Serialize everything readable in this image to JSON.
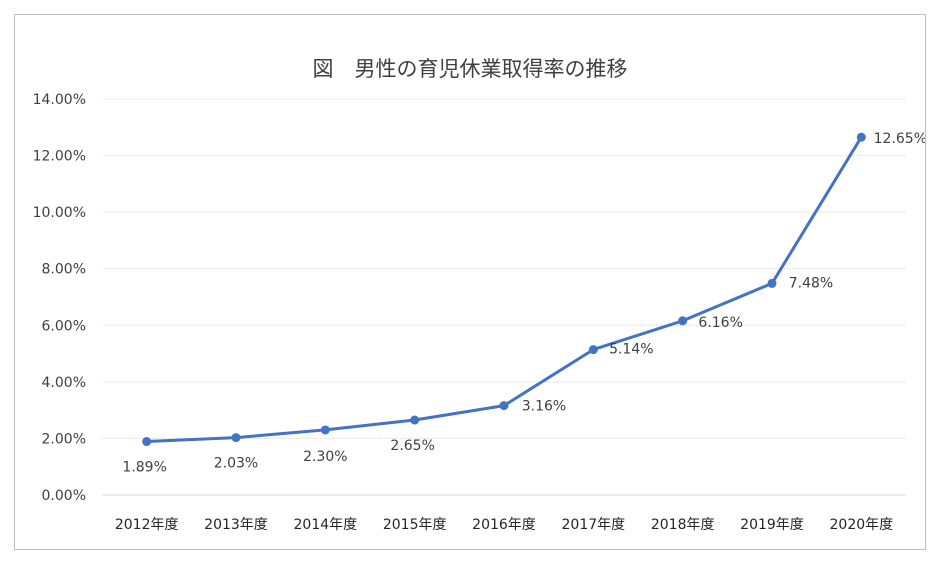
{
  "chart_data": {
    "type": "line",
    "title": "図　男性の育児休業取得率の推移",
    "categories": [
      "2012年度",
      "2013年度",
      "2014年度",
      "2015年度",
      "2016年度",
      "2017年度",
      "2018年度",
      "2019年度",
      "2020年度"
    ],
    "series": [
      {
        "values": [
          1.89,
          2.03,
          2.3,
          2.65,
          3.16,
          5.14,
          6.16,
          7.48,
          12.65
        ],
        "data_labels": [
          "1.89%",
          "2.03%",
          "2.30%",
          "2.65%",
          "3.16%",
          "5.14%",
          "6.16%",
          "7.48%",
          "12.65%"
        ],
        "color": "#4472c4"
      }
    ],
    "ylim": [
      0,
      14
    ],
    "yticks": [
      0,
      2,
      4,
      6,
      8,
      10,
      12,
      14
    ],
    "ytick_labels": [
      "0.00%",
      "2.00%",
      "4.00%",
      "6.00%",
      "8.00%",
      "10.00%",
      "12.00%",
      "14.00%"
    ],
    "grid": true,
    "legend": "none",
    "xlabel": "",
    "ylabel": ""
  }
}
